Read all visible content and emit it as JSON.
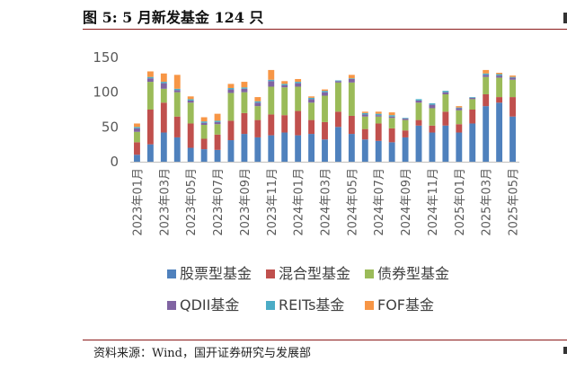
{
  "figure": {
    "title": "图 5:  5 月新发基金 124 只",
    "source": "资料来源：Wind，国开证券研究与发展部"
  },
  "chart_data": {
    "type": "bar",
    "stacked": true,
    "ylim": [
      0,
      150
    ],
    "yticks": [
      0,
      50,
      100,
      150
    ],
    "grid": false,
    "legend_position": "bottom",
    "categories": [
      "2023年01月",
      "2023年02月",
      "2023年03月",
      "2023年04月",
      "2023年05月",
      "2023年06月",
      "2023年07月",
      "2023年08月",
      "2023年09月",
      "2023年10月",
      "2023年11月",
      "2023年12月",
      "2024年01月",
      "2024年02月",
      "2024年03月",
      "2024年04月",
      "2024年05月",
      "2024年06月",
      "2024年07月",
      "2024年08月",
      "2024年09月",
      "2024年10月",
      "2024年11月",
      "2024年12月",
      "2025年01月",
      "2025年02月",
      "2025年03月",
      "2025年04月",
      "2025年05月"
    ],
    "xtick_labels": [
      "2023年01月",
      "2023年03月",
      "2023年05月",
      "2023年07月",
      "2023年09月",
      "2023年11月",
      "2024年01月",
      "2024年03月",
      "2024年05月",
      "2024年07月",
      "2024年09月",
      "2024年11月",
      "2025年01月",
      "2025年03月",
      "2025年05月"
    ],
    "series": [
      {
        "name": "股票型基金",
        "color": "#4F81BD",
        "values": [
          10,
          25,
          42,
          35,
          20,
          18,
          17,
          31,
          40,
          35,
          38,
          42,
          38,
          40,
          32,
          50,
          40,
          32,
          30,
          28,
          35,
          52,
          42,
          52,
          42,
          55,
          80,
          85,
          65
        ]
      },
      {
        "name": "混合型基金",
        "color": "#C0504D",
        "values": [
          18,
          50,
          43,
          30,
          35,
          15,
          22,
          28,
          30,
          25,
          30,
          25,
          35,
          20,
          25,
          22,
          26,
          15,
          25,
          20,
          10,
          8,
          10,
          20,
          12,
          20,
          17,
          8,
          28
        ]
      },
      {
        "name": "债券型基金",
        "color": "#9BBB59",
        "values": [
          15,
          40,
          20,
          35,
          30,
          20,
          15,
          40,
          30,
          20,
          40,
          40,
          35,
          25,
          38,
          42,
          48,
          18,
          10,
          15,
          15,
          25,
          25,
          25,
          20,
          15,
          25,
          28,
          25
        ]
      },
      {
        "name": "QDII基金",
        "color": "#8064A2",
        "values": [
          5,
          5,
          8,
          3,
          3,
          3,
          3,
          5,
          5,
          5,
          8,
          3,
          5,
          5,
          5,
          2,
          5,
          3,
          2,
          2,
          2,
          3,
          5,
          3,
          3,
          2,
          3,
          3,
          3
        ]
      },
      {
        "name": "REITs基金",
        "color": "#4BACC6",
        "values": [
          2,
          2,
          2,
          2,
          2,
          2,
          2,
          2,
          2,
          2,
          2,
          2,
          2,
          2,
          2,
          1,
          1,
          2,
          2,
          2,
          1,
          2,
          2,
          2,
          1,
          1,
          2,
          2,
          1
        ]
      },
      {
        "name": "FOF基金",
        "color": "#F79646",
        "values": [
          5,
          8,
          12,
          20,
          4,
          6,
          10,
          6,
          8,
          6,
          14,
          4,
          4,
          2,
          2,
          0,
          5,
          2,
          3,
          4,
          0,
          0,
          0,
          0,
          2,
          0,
          5,
          2,
          2
        ]
      }
    ]
  }
}
